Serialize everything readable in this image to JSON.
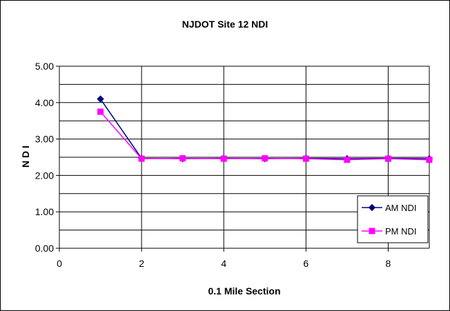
{
  "chart_data": {
    "type": "line",
    "title": "NJDOT Site 12  NDI",
    "xlabel": "0.1 Mile Section",
    "ylabel": "N D I",
    "xlim": [
      0,
      9
    ],
    "ylim": [
      0,
      5
    ],
    "x_ticks": [
      "0",
      "2",
      "4",
      "6",
      "8"
    ],
    "y_ticks": [
      "0.00",
      "1.00",
      "2.00",
      "3.00",
      "4.00",
      "5.00"
    ],
    "grid": "on",
    "legend_position": "bottom-right",
    "series": [
      {
        "name": "AM NDI",
        "color": "#000080",
        "marker": "diamond",
        "x": [
          1,
          2,
          3,
          4,
          5,
          6,
          7,
          8,
          9
        ],
        "values": [
          4.1,
          2.47,
          2.46,
          2.47,
          2.46,
          2.47,
          2.46,
          2.47,
          2.46
        ]
      },
      {
        "name": "PM NDI",
        "color": "#ff00ff",
        "marker": "square",
        "x": [
          1,
          2,
          3,
          4,
          5,
          6,
          7,
          8,
          9
        ],
        "values": [
          3.75,
          2.46,
          2.47,
          2.46,
          2.47,
          2.46,
          2.43,
          2.46,
          2.43
        ]
      }
    ]
  }
}
